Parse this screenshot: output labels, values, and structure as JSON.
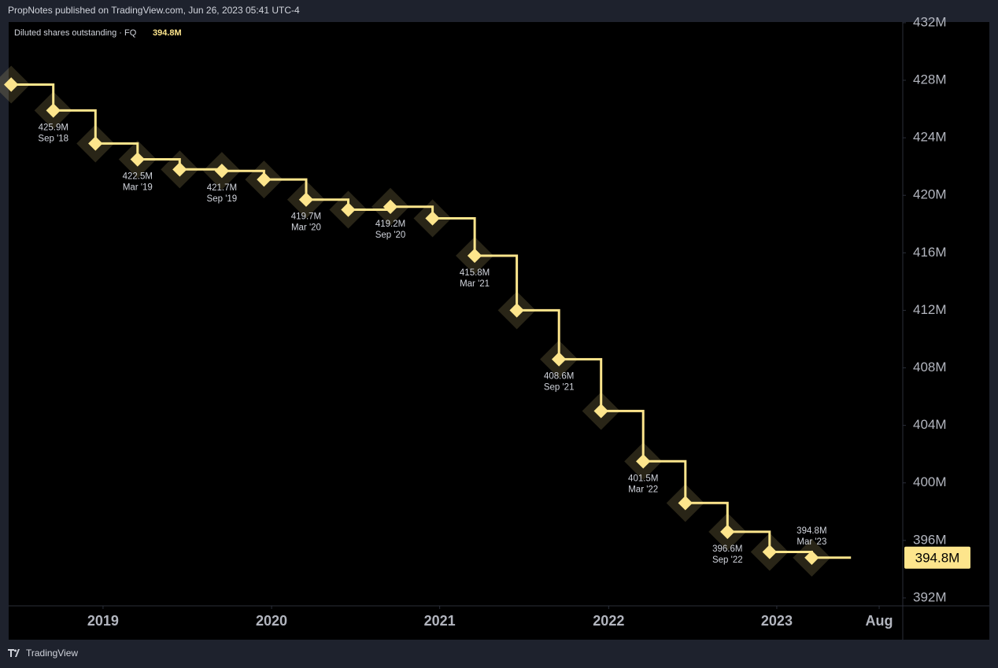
{
  "header": {
    "attribution": "PropNotes published on TradingView.com, Jun 26, 2023 05:41 UTC-4"
  },
  "footer": {
    "brand": "TradingView"
  },
  "chart_data": {
    "type": "step-line",
    "legend": "Diluted shares outstanding · FQ",
    "color": "#fde58c",
    "categories": [
      null,
      "Sep '18",
      null,
      "Mar '19",
      null,
      "Sep '19",
      null,
      "Mar '20",
      null,
      "Sep '20",
      null,
      "Mar '21",
      null,
      "Sep '21",
      null,
      "Mar '22",
      null,
      "Sep '22",
      null,
      "Mar '23"
    ],
    "values": [
      427.7,
      425.9,
      423.6,
      422.5,
      421.8,
      421.7,
      421.1,
      419.7,
      419.0,
      419.2,
      418.4,
      415.8,
      412.0,
      408.6,
      405.0,
      401.5,
      398.6,
      396.6,
      395.2,
      394.8
    ],
    "value_labels": [
      null,
      "425.9M",
      null,
      "422.5M",
      null,
      "421.7M",
      null,
      "419.7M",
      null,
      "419.2M",
      null,
      "415.8M",
      null,
      "408.6M",
      null,
      "401.5M",
      null,
      "396.6M",
      null,
      "394.8M"
    ],
    "xlim": [
      -0.06,
      21.16
    ],
    "xticks": [
      {
        "value": 2.18,
        "label": "2019"
      },
      {
        "value": 6.18,
        "label": "2020"
      },
      {
        "value": 10.17,
        "label": "2021"
      },
      {
        "value": 14.18,
        "label": "2022"
      },
      {
        "value": 18.17,
        "label": "2023"
      },
      {
        "value": 20.6,
        "label": "Aug"
      }
    ],
    "ylim": [
      391.45,
      432.05
    ],
    "yticks": [
      {
        "value": 392,
        "label": "392M"
      },
      {
        "value": 396,
        "label": "396M"
      },
      {
        "value": 400,
        "label": "400M"
      },
      {
        "value": 404,
        "label": "404M"
      },
      {
        "value": 408,
        "label": "408M"
      },
      {
        "value": 412,
        "label": "412M"
      },
      {
        "value": 416,
        "label": "416M"
      },
      {
        "value": 420,
        "label": "420M"
      },
      {
        "value": 424,
        "label": "424M"
      },
      {
        "value": 428,
        "label": "428M"
      },
      {
        "value": 432,
        "label": "432M"
      }
    ],
    "grid": false
  }
}
